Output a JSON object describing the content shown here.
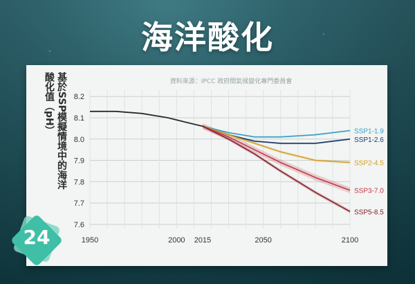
{
  "page": {
    "title": "海洋酸化",
    "source": "資料來源：IPCC 政府間氣候變化專門委員會",
    "badge": "24"
  },
  "chart_data": {
    "type": "line",
    "title": "",
    "xlabel": "",
    "ylabel_lines": [
      "基於SSP模擬情境中的海洋",
      "酸化值（pH）"
    ],
    "xlim": [
      1950,
      2100
    ],
    "ylim": [
      7.58,
      8.23
    ],
    "x_ticks": [
      1950,
      2000,
      2015,
      2050,
      2100
    ],
    "y_ticks": [
      7.6,
      7.7,
      7.8,
      7.9,
      8.0,
      8.1,
      8.2
    ],
    "grid": true,
    "legend_placement": "right-end-labels",
    "historical": {
      "color": "#2a2a2a",
      "points": [
        [
          1950,
          8.13
        ],
        [
          1965,
          8.13
        ],
        [
          1980,
          8.12
        ],
        [
          1995,
          8.1
        ],
        [
          2005,
          8.08
        ],
        [
          2015,
          8.06
        ]
      ]
    },
    "series": [
      {
        "name": "SSP1-1.9",
        "color": "#3a9fc6",
        "band": 0.004,
        "points": [
          [
            2015,
            8.06
          ],
          [
            2030,
            8.03
          ],
          [
            2045,
            8.01
          ],
          [
            2060,
            8.01
          ],
          [
            2080,
            8.02
          ],
          [
            2100,
            8.04
          ]
        ]
      },
      {
        "name": "SSP1-2.6",
        "color": "#1f3a6b",
        "band": 0.004,
        "points": [
          [
            2015,
            8.06
          ],
          [
            2030,
            8.02
          ],
          [
            2045,
            7.99
          ],
          [
            2060,
            7.98
          ],
          [
            2080,
            7.98
          ],
          [
            2100,
            8.0
          ]
        ]
      },
      {
        "name": "SSP2-4.5",
        "color": "#d4a02a",
        "band": 0.006,
        "points": [
          [
            2015,
            8.06
          ],
          [
            2030,
            8.02
          ],
          [
            2045,
            7.98
          ],
          [
            2060,
            7.94
          ],
          [
            2080,
            7.9
          ],
          [
            2100,
            7.89
          ]
        ]
      },
      {
        "name": "SSP3-7.0",
        "color": "#c23a4a",
        "band": 0.014,
        "points": [
          [
            2015,
            8.06
          ],
          [
            2030,
            8.01
          ],
          [
            2045,
            7.95
          ],
          [
            2060,
            7.89
          ],
          [
            2080,
            7.82
          ],
          [
            2100,
            7.76
          ]
        ]
      },
      {
        "name": "SSP5-8.5",
        "color": "#8a1f2c",
        "band": 0.008,
        "points": [
          [
            2015,
            8.06
          ],
          [
            2030,
            8.0
          ],
          [
            2045,
            7.93
          ],
          [
            2060,
            7.85
          ],
          [
            2080,
            7.75
          ],
          [
            2100,
            7.66
          ]
        ]
      }
    ]
  }
}
